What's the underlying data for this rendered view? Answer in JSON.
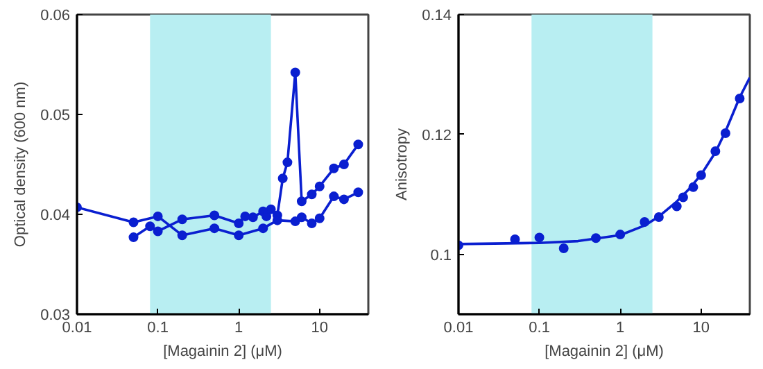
{
  "chart_data": [
    {
      "type": "line",
      "xlabel": "[Magainin 2] (μM)",
      "ylabel": "Optical density (600 nm)",
      "log": "x",
      "xlim": [
        0.01,
        40
      ],
      "xticks": [
        0.01,
        0.1,
        1,
        10
      ],
      "ylim": [
        0.03,
        0.06
      ],
      "yticks": [
        0.03,
        0.04,
        0.05,
        0.06
      ],
      "grid": false,
      "marker": "circle",
      "line_style": "solid",
      "bands": [
        {
          "axis": "x",
          "from": 0.08,
          "to": 2.5,
          "color": "#b8eef2"
        }
      ],
      "series": [
        {
          "color": "#0a1fd0",
          "x": [
            0.05,
            0.08,
            0.1,
            0.2,
            0.5,
            1,
            1.2,
            1.5,
            2,
            2.2,
            2.5,
            3,
            3.5,
            4,
            5,
            6,
            8,
            10,
            15,
            20,
            30
          ],
          "values": [
            0.0377,
            0.0388,
            0.0383,
            0.0395,
            0.0399,
            0.0391,
            0.0398,
            0.0397,
            0.0403,
            0.0398,
            0.0405,
            0.0399,
            0.0436,
            0.0452,
            0.0542,
            0.0413,
            0.042,
            0.0428,
            0.0446,
            0.045,
            0.047
          ]
        },
        {
          "color": "#0a1fd0",
          "x": [
            0.01,
            0.05,
            0.1,
            0.2,
            0.5,
            1,
            2,
            3,
            5,
            6,
            8,
            10,
            15,
            20,
            30
          ],
          "values": [
            0.0407,
            0.0392,
            0.0398,
            0.0379,
            0.0386,
            0.0379,
            0.0386,
            0.0394,
            0.0393,
            0.0397,
            0.0391,
            0.0396,
            0.0418,
            0.0415,
            0.0422
          ]
        }
      ]
    },
    {
      "type": "scatter",
      "xlabel": "[Magainin 2] (μM)",
      "ylabel": "Anisotropy",
      "log": "x",
      "xlim": [
        0.01,
        40
      ],
      "xticks": [
        0.01,
        0.1,
        1,
        10
      ],
      "ylim": [
        0.09,
        0.14
      ],
      "yticks": [
        0.1,
        0.12,
        0.14
      ],
      "grid": false,
      "marker": "circle",
      "bands": [
        {
          "axis": "x",
          "from": 0.08,
          "to": 2.5,
          "color": "#b8eef2"
        }
      ],
      "series": [
        {
          "color": "#0a1fd0",
          "x": [
            0.01,
            0.05,
            0.1,
            0.2,
            0.5,
            1,
            2,
            3,
            5,
            6,
            8,
            10,
            15,
            20,
            30
          ],
          "values": [
            0.1015,
            0.1025,
            0.1028,
            0.101,
            0.1027,
            0.1033,
            0.1054,
            0.1062,
            0.108,
            0.1095,
            0.1112,
            0.1132,
            0.1172,
            0.1202,
            0.126
          ]
        },
        {
          "type": "line",
          "marker": "none",
          "color": "#0a1fd0",
          "x": [
            0.01,
            0.1,
            0.3,
            1,
            2,
            3,
            5,
            7,
            10,
            15,
            20,
            30,
            40
          ],
          "values": [
            0.1017,
            0.1019,
            0.1022,
            0.1032,
            0.1048,
            0.1063,
            0.1088,
            0.1108,
            0.1133,
            0.117,
            0.1205,
            0.1262,
            0.1295
          ]
        }
      ]
    }
  ]
}
